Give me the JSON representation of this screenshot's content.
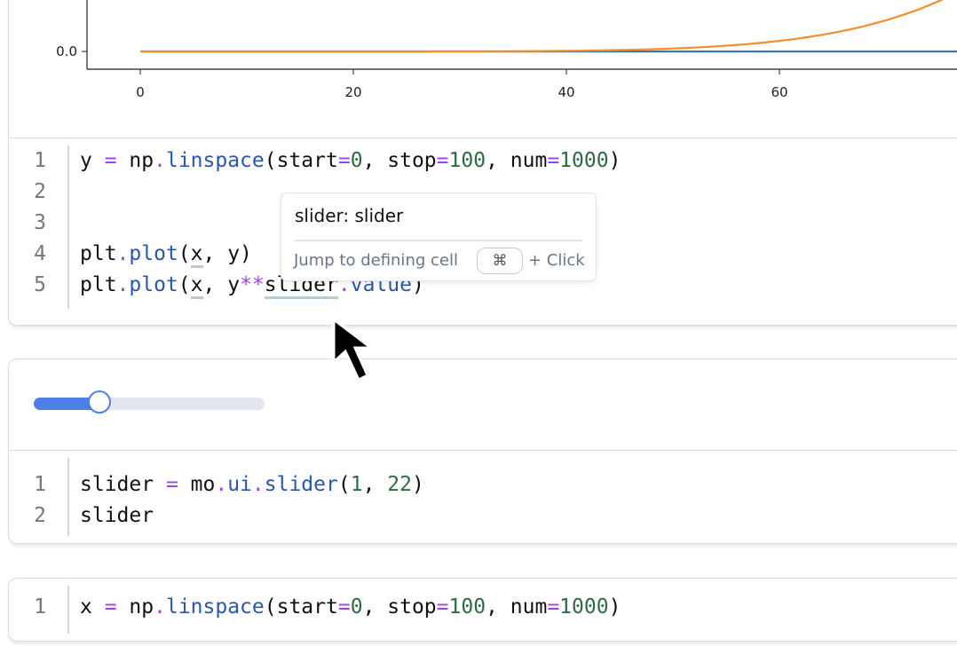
{
  "cells": [
    {
      "id": "plot-cell",
      "code": [
        [
          [
            "y ",
            "plain"
          ],
          [
            "=",
            "op"
          ],
          [
            " np",
            "plain"
          ],
          [
            ".",
            "op"
          ],
          [
            "linspace",
            "fn"
          ],
          [
            "(start",
            "plain"
          ],
          [
            "=",
            "op"
          ],
          [
            "0",
            "num"
          ],
          [
            ", stop",
            "plain"
          ],
          [
            "=",
            "op"
          ],
          [
            "100",
            "num"
          ],
          [
            ", num",
            "plain"
          ],
          [
            "=",
            "op"
          ],
          [
            "1000",
            "num"
          ],
          [
            ")",
            "plain"
          ]
        ],
        [],
        [],
        [
          [
            "plt",
            "plain"
          ],
          [
            ".",
            "op"
          ],
          [
            "plot",
            "fn"
          ],
          [
            "(",
            "plain"
          ],
          [
            "x",
            "ul"
          ],
          [
            ", y)",
            "plain"
          ]
        ],
        [
          [
            "plt",
            "plain"
          ],
          [
            ".",
            "op"
          ],
          [
            "plot",
            "fn"
          ],
          [
            "(",
            "plain"
          ],
          [
            "x",
            "ul"
          ],
          [
            ", y",
            "plain"
          ],
          [
            "**",
            "op"
          ],
          [
            "slider",
            "ul"
          ],
          [
            ".",
            "op"
          ],
          [
            "value",
            "fn"
          ],
          [
            ")",
            "plain"
          ]
        ]
      ]
    },
    {
      "id": "slider-cell",
      "code": [
        [
          [
            "slider ",
            "plain"
          ],
          [
            "=",
            "op"
          ],
          [
            " mo",
            "plain"
          ],
          [
            ".",
            "op"
          ],
          [
            "ui",
            "fn"
          ],
          [
            ".",
            "op"
          ],
          [
            "slider",
            "fn"
          ],
          [
            "(",
            "plain"
          ],
          [
            "1",
            "num"
          ],
          [
            ", ",
            "plain"
          ],
          [
            "22",
            "num"
          ],
          [
            ")",
            "plain"
          ]
        ],
        [
          [
            "slider",
            "plain"
          ]
        ]
      ]
    },
    {
      "id": "x-cell",
      "code": [
        [
          [
            "x ",
            "plain"
          ],
          [
            "=",
            "op"
          ],
          [
            " np",
            "plain"
          ],
          [
            ".",
            "op"
          ],
          [
            "linspace",
            "fn"
          ],
          [
            "(start",
            "plain"
          ],
          [
            "=",
            "op"
          ],
          [
            "0",
            "num"
          ],
          [
            ", stop",
            "plain"
          ],
          [
            "=",
            "op"
          ],
          [
            "100",
            "num"
          ],
          [
            ", num",
            "plain"
          ],
          [
            "=",
            "op"
          ],
          [
            "1000",
            "num"
          ],
          [
            ")",
            "plain"
          ]
        ]
      ]
    }
  ],
  "tooltip": {
    "title": "slider: slider",
    "hint": "Jump to defining cell",
    "key": "⌘",
    "click": "+ Click"
  },
  "slider": {
    "min": 1,
    "max": 22,
    "value": 7,
    "color": "#4f7fe6"
  },
  "chart_data": {
    "type": "line",
    "x_ticks": [
      "0",
      "20",
      "40",
      "60"
    ],
    "y_ticks": [
      "0.0"
    ],
    "series": [
      {
        "expr": "y",
        "color": "#3a75b0",
        "exponent": 1
      },
      {
        "expr": "y**slider.value",
        "color": "#f28e2b",
        "exponent": 7
      }
    ]
  }
}
